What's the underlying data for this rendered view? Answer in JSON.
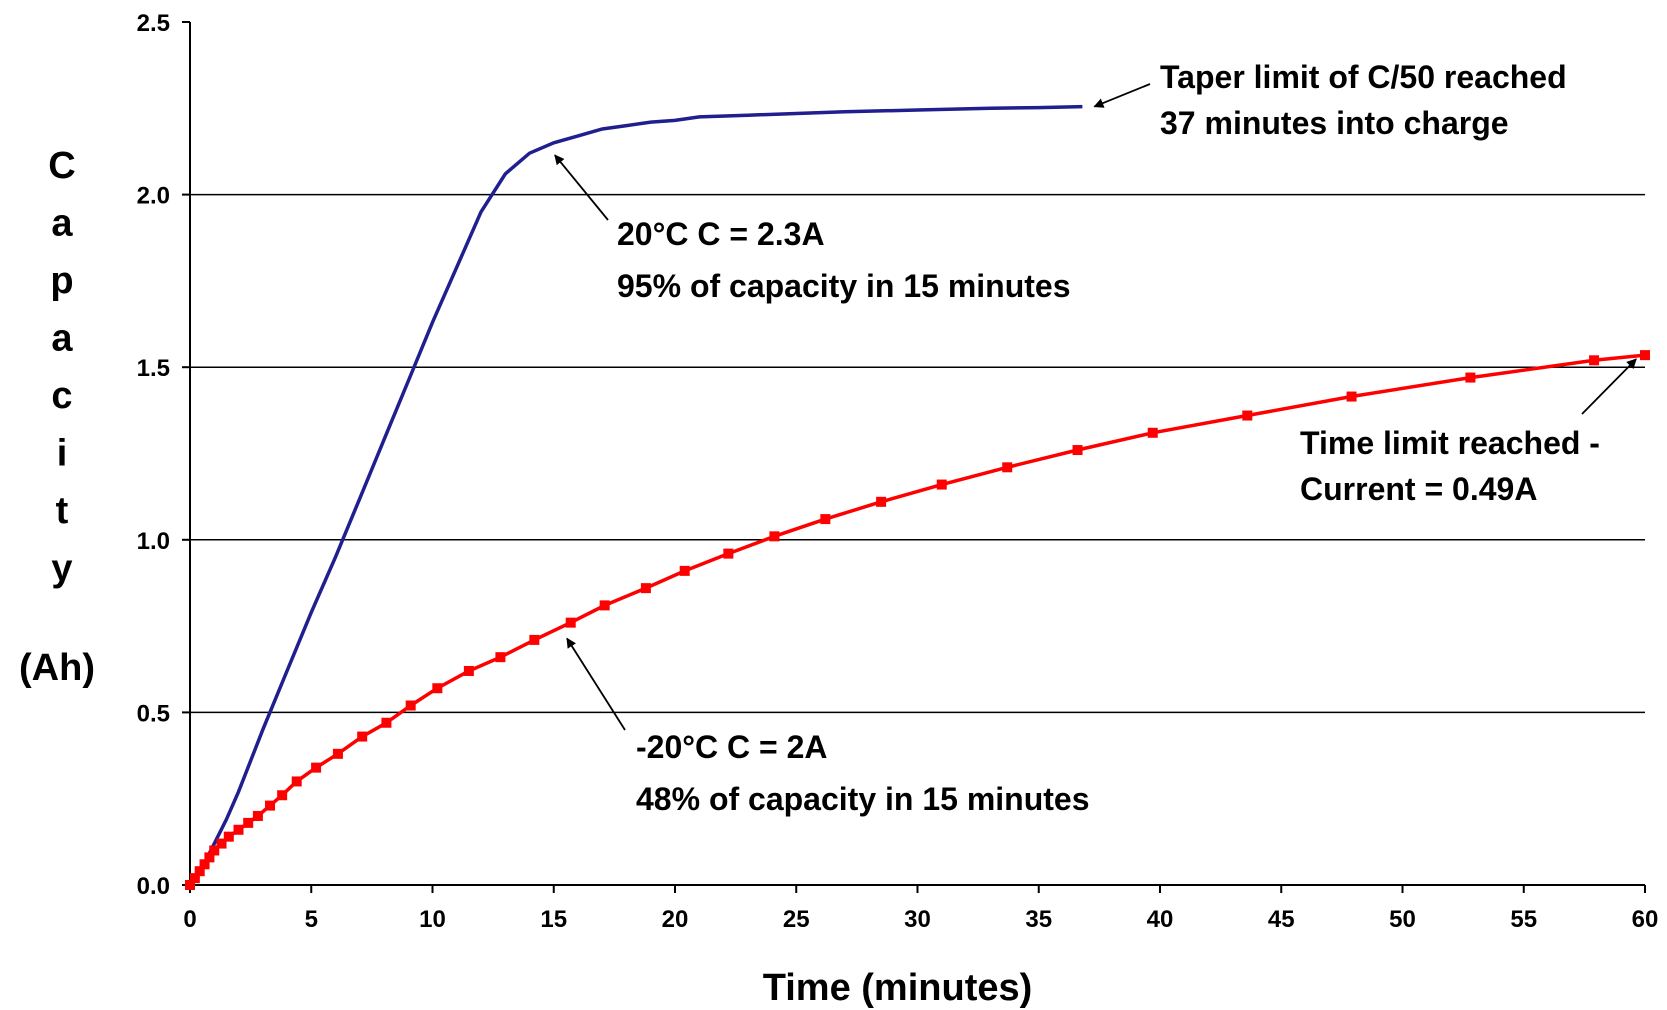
{
  "chart_data": {
    "type": "line",
    "xlabel": "Time (minutes)",
    "ylabel_letters": [
      "C",
      "a",
      "p",
      "a",
      "c",
      "i",
      "t",
      "y"
    ],
    "ylabel_unit": "(Ah)",
    "xlim": [
      0,
      60
    ],
    "ylim": [
      0,
      2.5
    ],
    "x_ticks": [
      "0",
      "5",
      "10",
      "15",
      "20",
      "25",
      "30",
      "35",
      "40",
      "45",
      "50",
      "55",
      "60"
    ],
    "y_ticks": [
      "0.0",
      "0.5",
      "1.0",
      "1.5",
      "2.0",
      "2.5"
    ],
    "grid": "horizontal",
    "series": [
      {
        "color": "#1f1f8f",
        "marker": "none",
        "points": [
          [
            0,
            0
          ],
          [
            0.5,
            0.05
          ],
          [
            1,
            0.12
          ],
          [
            1.5,
            0.19
          ],
          [
            2,
            0.27
          ],
          [
            3,
            0.45
          ],
          [
            4,
            0.62
          ],
          [
            5,
            0.79
          ],
          [
            6,
            0.95
          ],
          [
            7,
            1.12
          ],
          [
            8,
            1.29
          ],
          [
            9,
            1.46
          ],
          [
            10,
            1.63
          ],
          [
            11,
            1.79
          ],
          [
            12,
            1.95
          ],
          [
            13,
            2.06
          ],
          [
            14,
            2.12
          ],
          [
            15,
            2.15
          ],
          [
            16,
            2.17
          ],
          [
            17,
            2.19
          ],
          [
            18,
            2.2
          ],
          [
            19,
            2.21
          ],
          [
            20,
            2.215
          ],
          [
            21,
            2.225
          ],
          [
            23,
            2.23
          ],
          [
            25,
            2.235
          ],
          [
            27,
            2.24
          ],
          [
            30,
            2.245
          ],
          [
            33,
            2.25
          ],
          [
            35,
            2.252
          ],
          [
            36.8,
            2.255
          ]
        ]
      },
      {
        "color": "#ff0000",
        "marker": "square",
        "points": [
          [
            0,
            0
          ],
          [
            0.2,
            0.02
          ],
          [
            0.4,
            0.04
          ],
          [
            0.6,
            0.06
          ],
          [
            0.8,
            0.08
          ],
          [
            1.0,
            0.1
          ],
          [
            1.3,
            0.12
          ],
          [
            1.6,
            0.14
          ],
          [
            2.0,
            0.16
          ],
          [
            2.4,
            0.18
          ],
          [
            2.8,
            0.2
          ],
          [
            3.3,
            0.23
          ],
          [
            3.8,
            0.26
          ],
          [
            4.4,
            0.3
          ],
          [
            5.2,
            0.34
          ],
          [
            6.1,
            0.38
          ],
          [
            7.1,
            0.43
          ],
          [
            8.1,
            0.47
          ],
          [
            9.1,
            0.52
          ],
          [
            10.2,
            0.57
          ],
          [
            11.5,
            0.62
          ],
          [
            12.8,
            0.66
          ],
          [
            14.2,
            0.71
          ],
          [
            15.7,
            0.76
          ],
          [
            17.1,
            0.81
          ],
          [
            18.8,
            0.86
          ],
          [
            20.4,
            0.91
          ],
          [
            22.2,
            0.96
          ],
          [
            24.1,
            1.01
          ],
          [
            26.2,
            1.06
          ],
          [
            28.5,
            1.11
          ],
          [
            31.0,
            1.16
          ],
          [
            33.7,
            1.21
          ],
          [
            36.6,
            1.26
          ],
          [
            39.7,
            1.31
          ],
          [
            43.6,
            1.36
          ],
          [
            47.9,
            1.415
          ],
          [
            52.8,
            1.47
          ],
          [
            57.9,
            1.52
          ],
          [
            60,
            1.535
          ]
        ]
      }
    ],
    "annotations": [
      {
        "lines": [
          "Taper limit of C/50 reached",
          "37 minutes into charge"
        ],
        "arrow_to": [
          36.8,
          2.255
        ]
      },
      {
        "lines": [
          "20°C  C = 2.3A",
          "95% of capacity in 15 minutes"
        ],
        "arrow_to": [
          14.8,
          2.12
        ]
      },
      {
        "lines": [
          "Time limit reached -",
          "Current = 0.49A"
        ],
        "arrow_to": [
          59.8,
          1.535
        ]
      },
      {
        "lines": [
          "-20°C  C = 2A",
          "48% of capacity in 15 minutes"
        ],
        "arrow_to": [
          15.3,
          0.72
        ]
      }
    ]
  }
}
